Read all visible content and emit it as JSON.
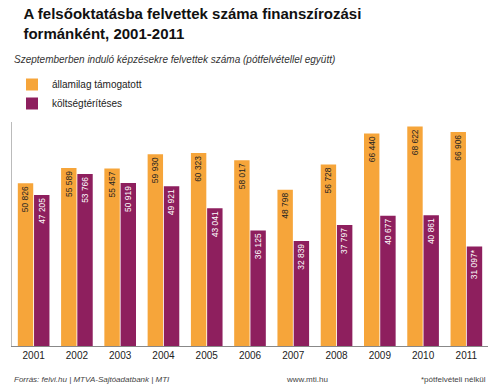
{
  "chart_data": {
    "type": "bar",
    "title": "A felsőoktatásba felvettek száma finanszírozási formánként, 2001-2011",
    "subtitle": "Szeptemberben induló képzésekre felvettek száma (pótfelvétellel együtt)",
    "categories": [
      "2001",
      "2002",
      "2003",
      "2004",
      "2005",
      "2006",
      "2007",
      "2008",
      "2009",
      "2010",
      "2011"
    ],
    "series": [
      {
        "name": "államilag támogatott",
        "color": "#f6a53a",
        "values": [
          50826,
          55589,
          55457,
          59930,
          60323,
          58017,
          48798,
          56728,
          66440,
          68622,
          66906
        ],
        "value_labels": [
          "50 826",
          "55 589",
          "55 457",
          "59 930",
          "60 323",
          "58 017",
          "48 798",
          "56 728",
          "66 440",
          "68 622",
          "66 906"
        ]
      },
      {
        "name": "költségtérítéses",
        "color": "#8e1f5e",
        "values": [
          47205,
          53766,
          50919,
          49921,
          43041,
          36125,
          32839,
          37797,
          40677,
          40861,
          31097
        ],
        "value_labels": [
          "47 205",
          "53 766",
          "50 919",
          "49 921",
          "43 041",
          "36 125",
          "32 839",
          "37 797",
          "40 677",
          "40 861",
          "31 097*"
        ]
      }
    ],
    "ylim": [
      0,
      70000
    ],
    "yticks": [],
    "grid": false,
    "legend": "top-left",
    "data_labels": true,
    "tick_labels": "x",
    "annotations": [
      "Forrás: felvi.hu | MTVA-Sajtóadatbank | MTI",
      "www.mti.hu",
      "*pótfelvételi nélkül"
    ]
  }
}
